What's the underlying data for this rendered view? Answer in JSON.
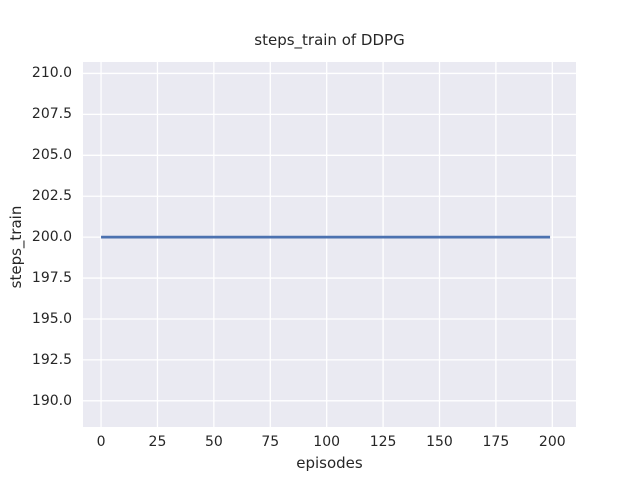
{
  "figure": {
    "background": "#ffffff",
    "plot_background": "#eaeaf2",
    "grid_color": "#ffffff",
    "text_color": "#262626"
  },
  "chart_data": {
    "type": "line",
    "title": "steps_train of DDPG",
    "xlabel": "episodes",
    "ylabel": "steps_train",
    "xlim": [
      -8,
      210.5
    ],
    "ylim": [
      188.4,
      210.7
    ],
    "grid": true,
    "legend": false,
    "x_ticks": [
      {
        "value": 0,
        "label": "0"
      },
      {
        "value": 25,
        "label": "25"
      },
      {
        "value": 50,
        "label": "50"
      },
      {
        "value": 75,
        "label": "75"
      },
      {
        "value": 100,
        "label": "100"
      },
      {
        "value": 125,
        "label": "125"
      },
      {
        "value": 150,
        "label": "150"
      },
      {
        "value": 175,
        "label": "175"
      },
      {
        "value": 200,
        "label": "200"
      }
    ],
    "y_ticks": [
      {
        "value": 190.0,
        "label": "190.0"
      },
      {
        "value": 192.5,
        "label": "192.5"
      },
      {
        "value": 195.0,
        "label": "195.0"
      },
      {
        "value": 197.5,
        "label": "197.5"
      },
      {
        "value": 200.0,
        "label": "200.0"
      },
      {
        "value": 202.5,
        "label": "202.5"
      },
      {
        "value": 205.0,
        "label": "205.0"
      },
      {
        "value": 207.5,
        "label": "207.5"
      },
      {
        "value": 210.0,
        "label": "210.0"
      }
    ],
    "series": [
      {
        "name": "steps_train",
        "color": "#4c72b0",
        "linewidth": 2.8,
        "x": [
          0,
          199
        ],
        "y": [
          200,
          200
        ]
      }
    ]
  }
}
